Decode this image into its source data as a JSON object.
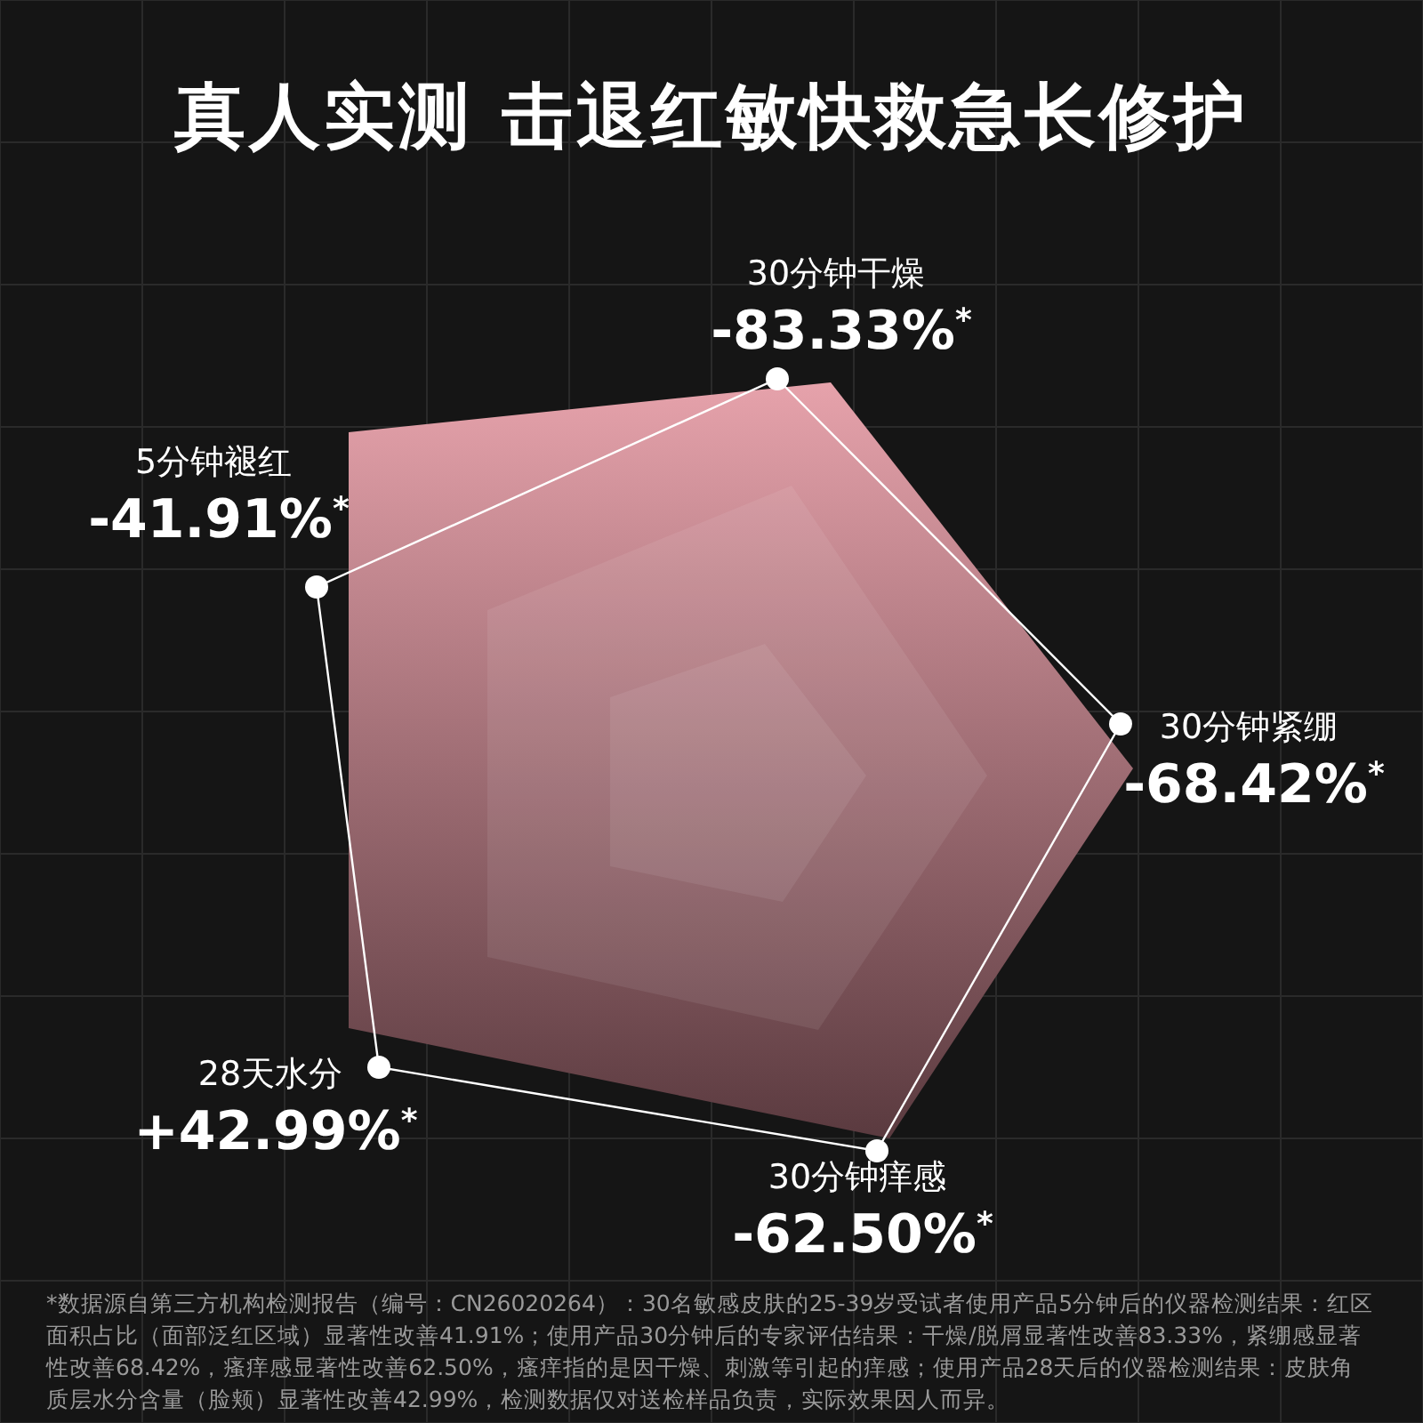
{
  "chart_data": {
    "type": "other",
    "title": "真人实测 击退红敏快救急长修护",
    "categories": [
      "30分钟干燥",
      "30分钟紧绷",
      "30分钟痒感",
      "28天水分",
      "5分钟褪红"
    ],
    "values": [
      -83.33,
      -68.42,
      -62.5,
      42.99,
      -41.91
    ],
    "value_labels": [
      "-83.33%$^{*}$",
      "-68.42%$^{*}$",
      "-62.50%$^{*}$",
      "+42.99%$^{*}$",
      "-41.91%$^{*}$"
    ],
    "annotations": [
      "*数据源自第三方机构检测报告（编号：CN26020264）：30名敏感皮肤的25-39岁受试者使用产品5分钟后的仪器检测结果：红区面积占比（面部泛红区域）显著性改善41.91%；使用产品30分钟后的专家评估结果：干燥/脱屑显著性改善83.33%，紧绷感显著性改善68.42%，瘙痒感显著性改善62.50%，瘙痒指的是因干燥、刺激等引起的痒感；使用产品28天后的仪器检测结果：皮肤角质层水分含量（脸颊）显著性改善42.99%，检测数据仅对送检样品负责，实际效果因人而异。"
    ]
  }
}
